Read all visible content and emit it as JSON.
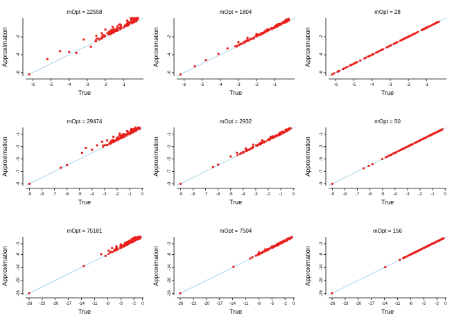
{
  "chart_data": [
    {
      "type": "scatter",
      "title": "mOpt = 22558",
      "xlabel": "True",
      "ylabel": "Approximation",
      "xlim": [
        -6.4,
        0.1
      ],
      "ylim": [
        -6.4,
        0.1
      ],
      "xticks": [
        -6,
        -5,
        -4,
        -3,
        -2,
        -1
      ],
      "yticks": [
        -6,
        -4,
        -2
      ],
      "spread": 0.9,
      "cluster": [
        -2.6,
        -0.2
      ],
      "points": [
        [
          -6.2,
          -6.2
        ],
        [
          -5.2,
          -4.5
        ],
        [
          -4.5,
          -3.6
        ],
        [
          -4.0,
          -3.7
        ],
        [
          -3.6,
          -3.8
        ],
        [
          -3.2,
          -2.3
        ],
        [
          -2.8,
          -3.1
        ],
        [
          -2.5,
          -1.9
        ],
        [
          -2.2,
          -1.6
        ],
        [
          -2.0,
          -1.2
        ],
        [
          -1.6,
          -0.9
        ],
        [
          -1.2,
          -0.6
        ],
        [
          -0.8,
          -0.2
        ],
        [
          -0.4,
          -0.1
        ]
      ]
    },
    {
      "type": "scatter",
      "title": "mOpt = 1804",
      "xlabel": "True",
      "ylabel": "Approximation",
      "xlim": [
        -6.4,
        0.1
      ],
      "ylim": [
        -6.4,
        0.1
      ],
      "xticks": [
        -6,
        -5,
        -4,
        -3,
        -2,
        -1
      ],
      "yticks": [
        -6,
        -4,
        -2
      ],
      "spread": 0.35,
      "cluster": [
        -3.2,
        -0.2
      ],
      "points": [
        [
          -6.2,
          -6.2
        ],
        [
          -5.4,
          -5.3
        ],
        [
          -4.8,
          -4.6
        ],
        [
          -4.1,
          -3.9
        ],
        [
          -3.6,
          -3.3
        ],
        [
          -3.0,
          -2.6
        ],
        [
          -2.5,
          -2.1
        ],
        [
          -2.0,
          -1.7
        ],
        [
          -1.5,
          -1.3
        ],
        [
          -1.0,
          -0.9
        ]
      ]
    },
    {
      "type": "scatter",
      "title": "mOpt = 28",
      "xlabel": "True",
      "ylabel": "Approximation",
      "xlim": [
        -6.4,
        0.1
      ],
      "ylim": [
        -6.4,
        0.1
      ],
      "xticks": [
        -6,
        -5,
        -4,
        -3,
        -2,
        -1
      ],
      "yticks": [
        -6,
        -4,
        -2
      ],
      "spread": 0.04,
      "cluster": [
        -6.2,
        -0.2
      ],
      "points": [
        [
          -6.2,
          -6.2
        ],
        [
          -5.9,
          -5.9
        ],
        [
          -5.0,
          -5.0
        ],
        [
          -4.0,
          -4.0
        ],
        [
          -3.0,
          -3.0
        ],
        [
          -2.0,
          -2.0
        ],
        [
          -1.0,
          -1.0
        ]
      ]
    },
    {
      "type": "scatter",
      "title": "mOpt = 29474",
      "xlabel": "True",
      "ylabel": "Approximation",
      "xlim": [
        -9.3,
        0.1
      ],
      "ylim": [
        -9.3,
        0.1
      ],
      "xticks": [
        -9,
        -8,
        -7,
        -6,
        -5,
        -4,
        -3,
        -2,
        -1,
        0
      ],
      "yticks": [
        -9,
        -7,
        -5,
        -3,
        -1
      ],
      "spread": 1.0,
      "cluster": [
        -3.2,
        -0.2
      ],
      "points": [
        [
          -9.0,
          -9.0
        ],
        [
          -6.5,
          -6.4
        ],
        [
          -6.0,
          -6.0
        ],
        [
          -4.8,
          -4.0
        ],
        [
          -4.5,
          -3.2
        ],
        [
          -4.0,
          -3.5
        ],
        [
          -3.6,
          -2.8
        ],
        [
          -3.2,
          -2.2
        ],
        [
          -2.8,
          -2.0
        ],
        [
          -2.3,
          -1.4
        ],
        [
          -1.8,
          -0.9
        ],
        [
          -1.2,
          -0.5
        ]
      ]
    },
    {
      "type": "scatter",
      "title": "mOpt = 2932",
      "xlabel": "True",
      "ylabel": "Approximation",
      "xlim": [
        -9.3,
        0.1
      ],
      "ylim": [
        -9.3,
        0.1
      ],
      "xticks": [
        -9,
        -8,
        -7,
        -6,
        -5,
        -4,
        -3,
        -2,
        -1,
        0
      ],
      "yticks": [
        -9,
        -7,
        -5,
        -3,
        -1
      ],
      "spread": 0.45,
      "cluster": [
        -4.5,
        -0.2
      ],
      "points": [
        [
          -9.0,
          -9.0
        ],
        [
          -6.4,
          -6.3
        ],
        [
          -6.0,
          -5.9
        ],
        [
          -5.0,
          -4.6
        ],
        [
          -4.5,
          -4.0
        ],
        [
          -3.8,
          -3.3
        ],
        [
          -3.2,
          -2.7
        ],
        [
          -2.5,
          -2.0
        ],
        [
          -1.8,
          -1.4
        ],
        [
          -1.0,
          -0.7
        ]
      ]
    },
    {
      "type": "scatter",
      "title": "mOpt = 50",
      "xlabel": "True",
      "ylabel": "Approximation",
      "xlim": [
        -9.3,
        0.1
      ],
      "ylim": [
        -9.3,
        0.1
      ],
      "xticks": [
        -9,
        -8,
        -7,
        -6,
        -5,
        -4,
        -3,
        -2,
        -1,
        0
      ],
      "yticks": [
        -9,
        -7,
        -5,
        -3,
        -1
      ],
      "spread": 0.05,
      "cluster": [
        -5.2,
        -0.2
      ],
      "points": [
        [
          -9.0,
          -9.0
        ],
        [
          -6.5,
          -6.5
        ],
        [
          -6.1,
          -6.1
        ],
        [
          -5.8,
          -5.8
        ],
        [
          -4.0,
          -4.0
        ],
        [
          -2.0,
          -2.0
        ],
        [
          -0.5,
          -0.5
        ]
      ]
    },
    {
      "type": "scatter",
      "title": "mOpt = 75181",
      "xlabel": "True",
      "ylabel": "Approximation",
      "xlim": [
        -26.8,
        0.2
      ],
      "ylim": [
        -26.8,
        0.2
      ],
      "xticks": [
        -26,
        -23,
        -20,
        -17,
        -14,
        -11,
        -8,
        -5,
        -2,
        0
      ],
      "yticks": [
        -26,
        -20,
        -14,
        -8,
        -3
      ],
      "spread": 2.3,
      "cluster": [
        -8.0,
        -0.4
      ],
      "points": [
        [
          -26.0,
          -26.0
        ],
        [
          -13.5,
          -13.4
        ],
        [
          -9.5,
          -7.8
        ],
        [
          -8.5,
          -8.6
        ],
        [
          -7.8,
          -6.2
        ],
        [
          -7.0,
          -5.0
        ],
        [
          -6.0,
          -4.2
        ],
        [
          -5.0,
          -3.3
        ],
        [
          -4.0,
          -2.6
        ],
        [
          -3.0,
          -1.6
        ],
        [
          -2.0,
          -1.0
        ]
      ]
    },
    {
      "type": "scatter",
      "title": "mOpt = 7504",
      "xlabel": "True",
      "ylabel": "Approximation",
      "xlim": [
        -26.8,
        0.2
      ],
      "ylim": [
        -26.8,
        0.2
      ],
      "xticks": [
        -26,
        -23,
        -20,
        -17,
        -14,
        -11,
        -8,
        -5,
        -2,
        0
      ],
      "yticks": [
        -26,
        -20,
        -14,
        -8,
        -3
      ],
      "spread": 1.1,
      "cluster": [
        -8.8,
        -0.4
      ],
      "points": [
        [
          -26.0,
          -26.0
        ],
        [
          -13.8,
          -13.7
        ],
        [
          -10.0,
          -9.8
        ],
        [
          -9.5,
          -9.3
        ],
        [
          -8.0,
          -7.0
        ],
        [
          -6.5,
          -5.6
        ],
        [
          -5.0,
          -4.3
        ],
        [
          -3.5,
          -2.9
        ],
        [
          -2.0,
          -1.5
        ]
      ]
    },
    {
      "type": "scatter",
      "title": "mOpt = 156",
      "xlabel": "True",
      "ylabel": "Approximation",
      "xlim": [
        -26.8,
        0.2
      ],
      "ylim": [
        -26.8,
        0.2
      ],
      "xticks": [
        -26,
        -23,
        -20,
        -17,
        -14,
        -11,
        -8,
        -5,
        -2,
        0
      ],
      "yticks": [
        -26,
        -20,
        -14,
        -8,
        -3
      ],
      "spread": 0.1,
      "cluster": [
        -10.5,
        -0.4
      ],
      "points": [
        [
          -26.0,
          -26.0
        ],
        [
          -13.8,
          -13.8
        ],
        [
          -10.5,
          -10.5
        ],
        [
          -9.5,
          -9.5
        ],
        [
          -7.0,
          -7.0
        ],
        [
          -4.0,
          -4.0
        ],
        [
          -1.5,
          -1.5
        ]
      ]
    }
  ],
  "colors": {
    "points": "#e8201c",
    "reference_line": "#a8d4ec",
    "axes": "#000000"
  }
}
